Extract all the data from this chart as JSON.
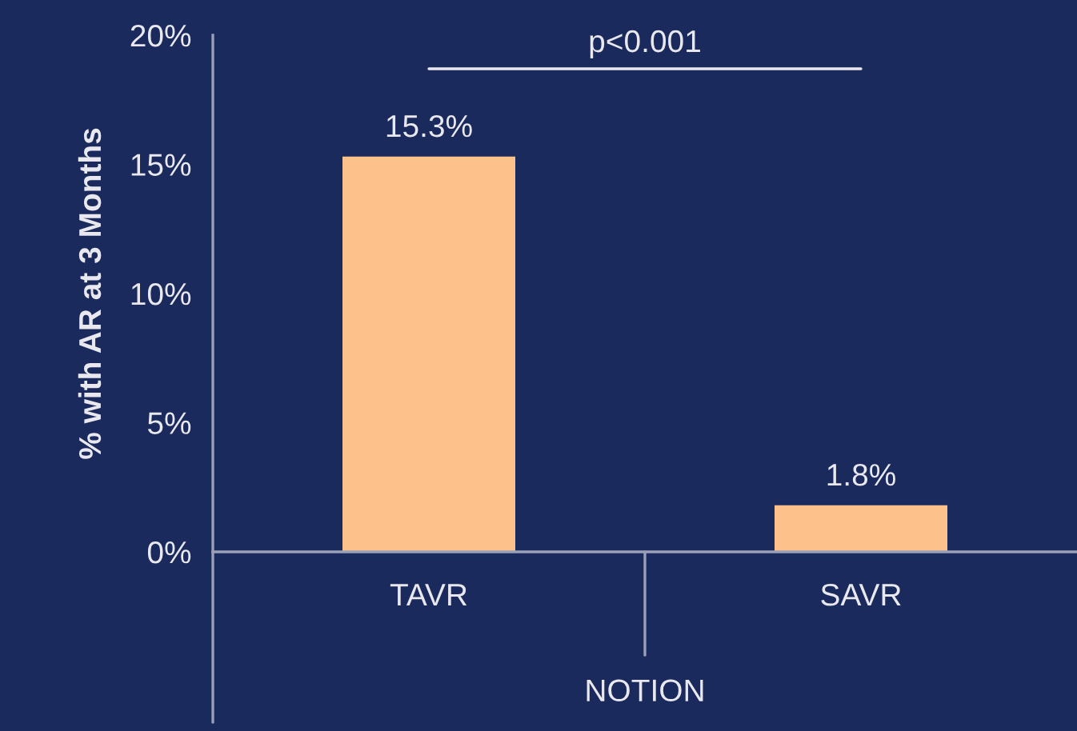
{
  "chart_data": {
    "type": "bar",
    "categories": [
      "TAVR",
      "SAVR"
    ],
    "values": [
      15.3,
      1.8
    ],
    "value_labels": [
      "15.3%",
      "1.8%"
    ],
    "color": "#fdc18b",
    "ylabel": "% with AR at 3 Months",
    "xlabel": "NOTION",
    "ylim": [
      0,
      20
    ],
    "yticks": [
      {
        "value": 0,
        "label": "0%"
      },
      {
        "value": 5,
        "label": "5%"
      },
      {
        "value": 10,
        "label": "10%"
      },
      {
        "value": 15,
        "label": "15%"
      },
      {
        "value": 20,
        "label": "20%"
      }
    ],
    "annotations": [
      "p<0.001"
    ],
    "grid": false,
    "legend": false
  }
}
